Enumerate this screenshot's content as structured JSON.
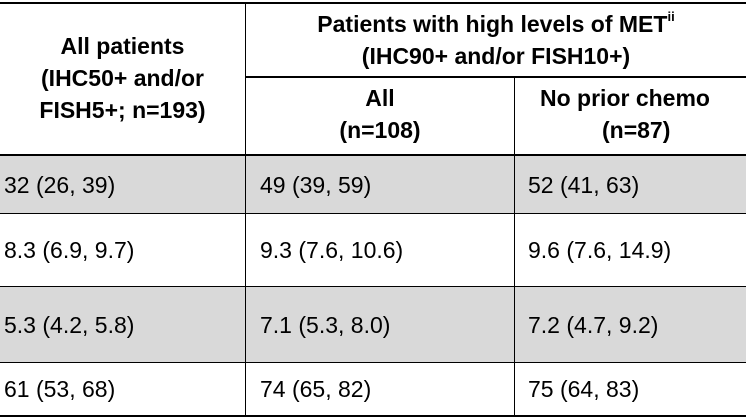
{
  "header": {
    "all_patients": [
      "All patients",
      "(IHC50+ and/or",
      "FISH5+; n=193)"
    ],
    "high_met_title": "Patients with high levels of MET",
    "high_met_sup": "ii",
    "high_met_sub": "(IHC90+ and/or FISH10+)",
    "all": [
      "All",
      "(n=108)"
    ],
    "no_prior": [
      "No prior chemo",
      "(n=87)"
    ]
  },
  "rows": [
    {
      "c1": "32 (26, 39)",
      "c2": "49 (39, 59)",
      "c3": "52 (41, 63)",
      "shaded": true
    },
    {
      "c1": "8.3 (6.9, 9.7)",
      "c2": "9.3 (7.6, 10.6)",
      "c3": "9.6 (7.6, 14.9)",
      "shaded": false
    },
    {
      "c1": "5.3 (4.2, 5.8)",
      "c2": "7.1 (5.3, 8.0)",
      "c3": "7.2 (4.7, 9.2)",
      "shaded": true
    },
    {
      "c1": "61 (53, 68)",
      "c2": "74 (65, 82)",
      "c3": "75 (64, 83)",
      "shaded": false
    }
  ]
}
